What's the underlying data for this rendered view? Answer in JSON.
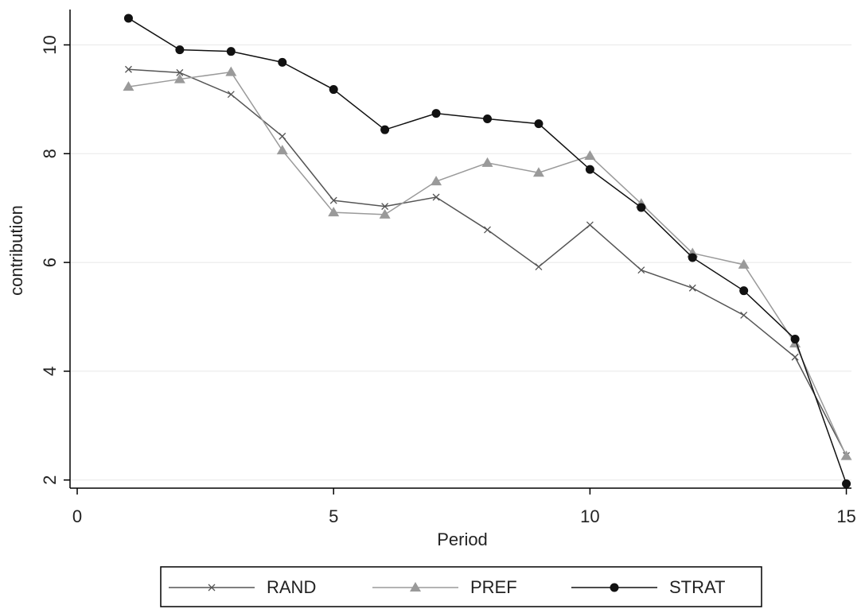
{
  "chart_data": {
    "type": "line",
    "x_label": "Period",
    "y_label": "contribution",
    "x": [
      1,
      2,
      3,
      4,
      5,
      6,
      7,
      8,
      9,
      10,
      11,
      12,
      13,
      14,
      15
    ],
    "series": [
      {
        "name": "RAND",
        "color": "#555555",
        "marker": "x",
        "values": [
          9.55,
          9.49,
          9.09,
          8.32,
          7.14,
          7.03,
          7.2,
          6.6,
          5.92,
          6.69,
          5.86,
          5.53,
          5.03,
          4.26,
          2.45
        ]
      },
      {
        "name": "PREF",
        "color": "#9a9a9a",
        "marker": "triangle",
        "values": [
          9.23,
          9.37,
          9.5,
          8.06,
          6.92,
          6.88,
          7.49,
          7.83,
          7.65,
          7.96,
          7.08,
          6.17,
          5.96,
          4.51,
          2.44
        ]
      },
      {
        "name": "STRAT",
        "color": "#111111",
        "marker": "circle",
        "values": [
          10.49,
          9.91,
          9.88,
          9.68,
          9.18,
          8.44,
          8.74,
          8.64,
          8.55,
          7.71,
          7.01,
          6.09,
          5.48,
          4.59,
          1.93
        ]
      }
    ],
    "xlim": [
      -0.14,
      15.1
    ],
    "xticks": [
      0,
      5,
      10,
      15
    ],
    "ylim": [
      1.85,
      10.65
    ],
    "yticks": [
      2,
      4,
      6,
      8,
      10
    ],
    "grid": true,
    "legend": "bottom"
  }
}
